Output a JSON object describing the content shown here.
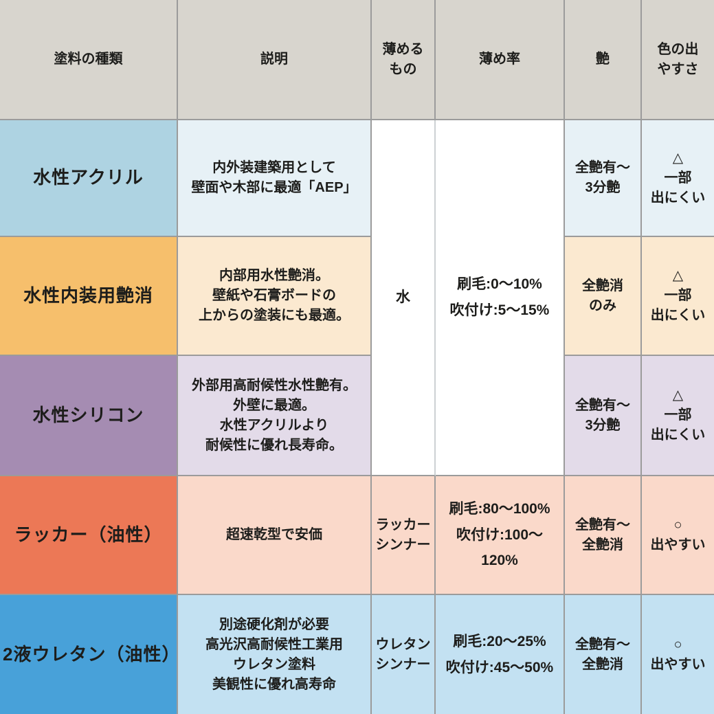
{
  "chart_data": {
    "type": "table",
    "columns": [
      "塗料の種類",
      "説明",
      "薄める\nもの",
      "薄め率",
      "艶",
      "色の出\nやすさ"
    ],
    "merges": [
      {
        "column": "thinner",
        "rows": [
          0,
          1,
          2
        ]
      },
      {
        "column": "rate",
        "rows": [
          0,
          1,
          2
        ]
      }
    ],
    "rows": [
      {
        "type": "水性アクリル",
        "description": "内外装建築用として\n壁面や木部に最適「AEP」",
        "thinner": "水",
        "rate": "刷毛:0〜10%\n吹付け:5〜15%",
        "gloss": "全艶有〜\n3分艶",
        "color": "△\n一部\n出にくい"
      },
      {
        "type": "水性内装用艶消",
        "description": "内部用水性艶消。\n壁紙や石膏ボードの\n上からの塗装にも最適。",
        "thinner": "水",
        "rate": "刷毛:0〜10%\n吹付け:5〜15%",
        "gloss": "全艶消\nのみ",
        "color": "△\n一部\n出にくい"
      },
      {
        "type": "水性シリコン",
        "description": "外部用高耐候性水性艶有。\n外壁に最適。\n水性アクリルより\n耐候性に優れ長寿命。",
        "thinner": "水",
        "rate": "刷毛:0〜10%\n吹付け:5〜15%",
        "gloss": "全艶有〜\n3分艶",
        "color": "△\n一部\n出にくい"
      },
      {
        "type": "ラッカー（油性）",
        "description": "超速乾型で安価",
        "thinner": "ラッカー\nシンナー",
        "rate": "刷毛:80〜100%\n吹付け:100〜120%",
        "gloss": "全艶有〜\n全艶消",
        "color": "○\n出やすい"
      },
      {
        "type": "2液ウレタン（油性）",
        "description": "別途硬化剤が必要\n高光沢高耐候性工業用\nウレタン塗料\n美観性に優れ高寿命",
        "thinner": "ウレタン\nシンナー",
        "rate": "刷毛:20〜25%\n吹付け:45〜50%",
        "gloss": "全艶有〜\n全艶消",
        "color": "○\n出やすい"
      }
    ],
    "palette": {
      "header_bg": "#d8d5ce",
      "gridline": "#9b9b9b",
      "text": "#1d1d1b",
      "merged_cell_bg": "#ffffff",
      "row_accents": [
        "#aed3e2",
        "#f6bf6c",
        "#a58cb2",
        "#ec7856",
        "#48a1d9"
      ],
      "row_tints": [
        "#e7f1f6",
        "#fbe9d0",
        "#e3dbe9",
        "#fad9ca",
        "#c3e1f2"
      ]
    }
  }
}
